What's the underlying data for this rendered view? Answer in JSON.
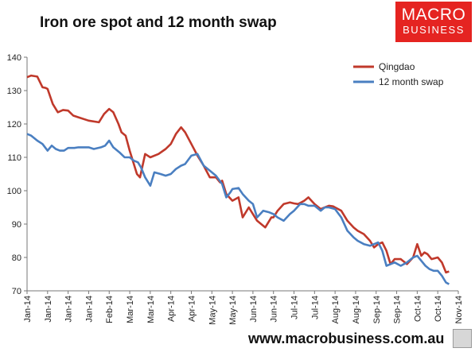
{
  "header": {
    "title": "Iron ore spot and 12 month swap"
  },
  "logo": {
    "line1": "MACRO",
    "line2": "BUSINESS"
  },
  "footer": {
    "url": "www.macrobusiness.com.au"
  },
  "chart_data": {
    "type": "line",
    "title": "Iron ore spot and 12 month swap",
    "xlabel": "",
    "ylabel": "",
    "ylim": [
      70,
      140
    ],
    "yticks": [
      70,
      80,
      90,
      100,
      110,
      120,
      130,
      140
    ],
    "xtick_labels": [
      "Jan-14",
      "Jan-14",
      "Jan-14",
      "Jan-14",
      "Feb-14",
      "Mar-14",
      "Mar-14",
      "Apr-14",
      "Apr-14",
      "May-14",
      "May-14",
      "Jun-14",
      "Jun-14",
      "Jul-14",
      "Jul-14",
      "Aug-14",
      "Aug-14",
      "Sep-14",
      "Sep-14",
      "Oct-14",
      "Oct-14",
      "Nov-14"
    ],
    "grid": false,
    "legend_position": "top-right",
    "x_range": [
      0,
      21
    ],
    "series": [
      {
        "name": "Qingdao",
        "color": "#c0392b",
        "x": [
          0,
          0.2,
          0.5,
          0.75,
          0.9,
          1.0,
          1.25,
          1.5,
          1.75,
          2.0,
          2.25,
          2.5,
          3.0,
          3.5,
          3.75,
          4.0,
          4.2,
          4.45,
          4.6,
          4.8,
          5.0,
          5.1,
          5.35,
          5.5,
          5.75,
          6.0,
          6.4,
          6.75,
          7.0,
          7.25,
          7.5,
          7.7,
          8.0,
          8.3,
          8.6,
          8.9,
          9.2,
          9.4,
          9.5,
          9.7,
          10.0,
          10.3,
          10.5,
          10.8,
          11.0,
          11.2,
          11.6,
          11.9,
          12.0,
          12.2,
          12.5,
          12.8,
          13.0,
          13.2,
          13.5,
          13.7,
          14.0,
          14.3,
          14.5,
          14.7,
          14.9,
          15.0,
          15.3,
          15.6,
          15.9,
          16.1,
          16.4,
          16.7,
          16.9,
          17.1,
          17.3,
          17.5,
          17.7,
          17.9,
          18.2,
          18.5,
          18.8,
          19.0,
          19.2,
          19.35,
          19.5,
          19.7,
          20.0,
          20.2,
          20.4,
          20.55
        ],
        "values": [
          134,
          134.5,
          134.2,
          131,
          130.8,
          130.5,
          126,
          123.5,
          124.2,
          124,
          122.5,
          122,
          121,
          120.5,
          123,
          124.5,
          123.5,
          120,
          117.5,
          116.5,
          112,
          110,
          105,
          104,
          111,
          110,
          111,
          112.5,
          114,
          117,
          119,
          117.5,
          114,
          110.5,
          107.5,
          104,
          104,
          102.5,
          103,
          99,
          97,
          98,
          92,
          95,
          93,
          91,
          89,
          92,
          92,
          94,
          96,
          96.5,
          96.2,
          96,
          97,
          98,
          96,
          94.5,
          95,
          95.5,
          95.3,
          95,
          94,
          91,
          89,
          88,
          87,
          85,
          83,
          84,
          84.5,
          82,
          78,
          79.5,
          79.5,
          78,
          80,
          84,
          80.5,
          81.5,
          81,
          79.5,
          80,
          78.5,
          75.5,
          75.8
        ]
      },
      {
        "name": "12 month swap",
        "color": "#4a7fc1",
        "x": [
          0,
          0.2,
          0.5,
          0.75,
          1.0,
          1.2,
          1.4,
          1.6,
          1.8,
          2.0,
          2.3,
          2.5,
          2.75,
          3.0,
          3.25,
          3.6,
          3.8,
          4.0,
          4.2,
          4.5,
          4.75,
          5.0,
          5.2,
          5.4,
          5.55,
          5.75,
          6.0,
          6.2,
          6.5,
          6.75,
          7.0,
          7.25,
          7.5,
          7.7,
          8.0,
          8.3,
          8.6,
          8.9,
          9.2,
          9.5,
          9.7,
          9.9,
          10.0,
          10.3,
          10.5,
          10.8,
          11.0,
          11.2,
          11.5,
          11.8,
          12.0,
          12.2,
          12.5,
          12.8,
          13.0,
          13.3,
          13.5,
          13.7,
          14.0,
          14.3,
          14.5,
          14.7,
          15.0,
          15.3,
          15.6,
          15.9,
          16.1,
          16.4,
          16.7,
          16.9,
          17.1,
          17.3,
          17.5,
          17.7,
          17.9,
          18.2,
          18.5,
          18.8,
          19.0,
          19.2,
          19.4,
          19.6,
          19.8,
          20.0,
          20.2,
          20.4,
          20.55
        ],
        "values": [
          117,
          116.5,
          115,
          114,
          112,
          113.5,
          112.5,
          112,
          112,
          112.8,
          112.8,
          113,
          113,
          113,
          112.5,
          113,
          113.5,
          115,
          113,
          111.5,
          110,
          110,
          109,
          108.5,
          107,
          104,
          101.5,
          105.5,
          105,
          104.5,
          105,
          106.5,
          107.5,
          108,
          110.5,
          111,
          107.5,
          106,
          104.5,
          102,
          98,
          99.5,
          100.5,
          100.8,
          99,
          97,
          96,
          92,
          94,
          93.5,
          93,
          92,
          91,
          93,
          94,
          96,
          96,
          95.5,
          95.5,
          94,
          95,
          95,
          94.5,
          92,
          88,
          86,
          85,
          84,
          83.5,
          84,
          84.5,
          82,
          77.5,
          78,
          78.5,
          77.5,
          78.5,
          80,
          80.5,
          79,
          77.5,
          76.5,
          76,
          76,
          74.5,
          72.5,
          72
        ]
      }
    ]
  }
}
